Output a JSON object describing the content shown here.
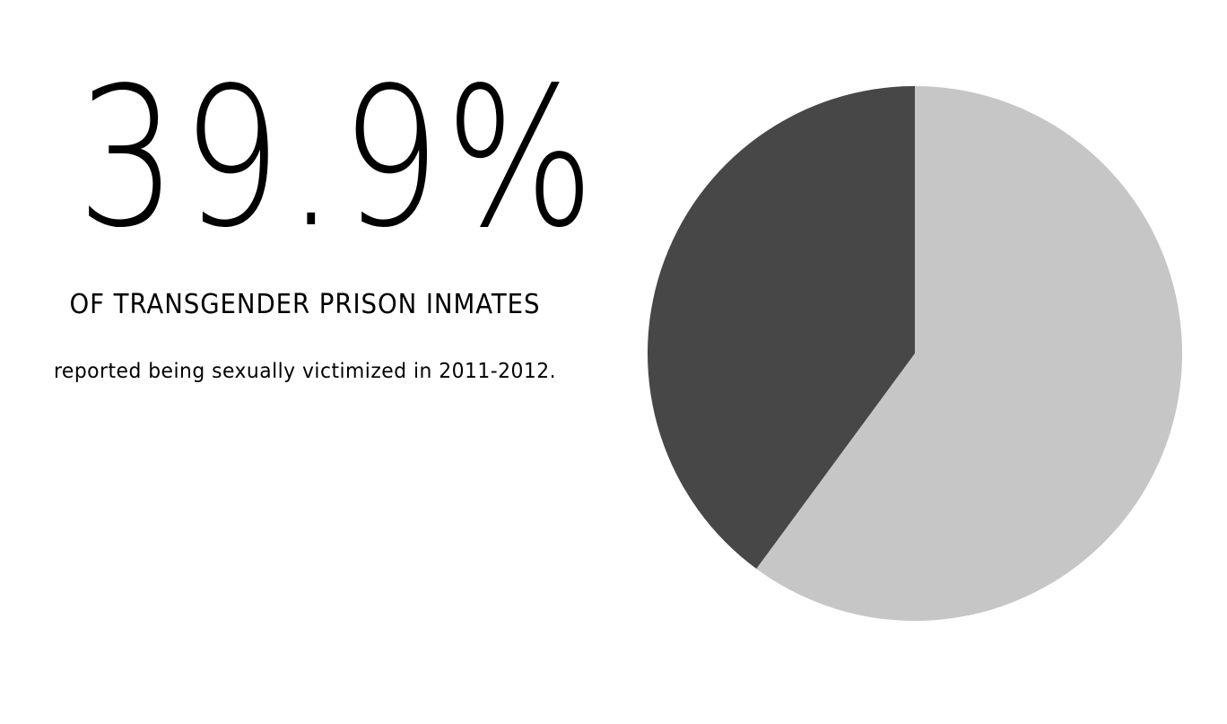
{
  "stat": {
    "headline": "39.9%",
    "subject": "OF TRANSGENDER PRISON INMATES",
    "detail": "reported being sexually victimized in 2011-2012."
  },
  "chart_data": {
    "type": "pie",
    "slices": [
      {
        "value": 39.9,
        "color": "#474747"
      },
      {
        "value": 60.1,
        "color": "#c6c6c6"
      }
    ],
    "start": "top",
    "direction": "counter-clockwise"
  }
}
